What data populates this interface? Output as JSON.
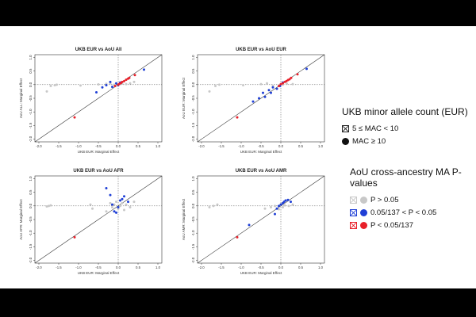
{
  "legend": {
    "mac_title": "UKB minor allele count (EUR)",
    "mac_items": [
      {
        "symbol": "crossed-box",
        "label": "5 ≤ MAC < 10"
      },
      {
        "symbol": "filled-dot",
        "label": "MAC ≥ 10"
      }
    ],
    "pval_title": "AoU cross-ancestry MA P-values",
    "pval_items": [
      {
        "label": "P > 0.05",
        "color": "#c8c8c8"
      },
      {
        "label": "0.05/137 < P < 0.05",
        "color": "#1f3fd6"
      },
      {
        "label": "P < 0.05/137",
        "color": "#e8202a"
      }
    ]
  },
  "colors": {
    "gray": "#c8c8c8",
    "blue": "#1f3fd6",
    "red": "#e8202a"
  },
  "chart_data": [
    {
      "type": "scatter",
      "title": "UKB EUR vs AoU All",
      "xlabel": "UKB EUR: Marginal Effect",
      "ylabel": "AoU ALL: Marginal Effect",
      "xlim": [
        -2.1,
        1.1
      ],
      "ylim": [
        -2.1,
        1.1
      ],
      "xticks": [
        "-2.0",
        "-1.5",
        "-1.0",
        "-0.5",
        "0.0",
        "0.5",
        "1.0"
      ],
      "yticks": [
        "-2.0",
        "-1.5",
        "-1.0",
        "-0.5",
        "0.0",
        "0.5",
        "1.0"
      ],
      "reference": "y = x line; dotted lines at x = 0 and y = 0",
      "series": [
        {
          "category": "gray",
          "points": [
            [
              -1.8,
              -0.25
            ],
            [
              -1.7,
              -0.05
            ],
            [
              -1.6,
              -0.02
            ],
            [
              -1.55,
              0.0
            ],
            [
              -0.95,
              -0.03
            ],
            [
              -0.5,
              0.01
            ],
            [
              -0.3,
              0.03
            ],
            [
              -0.2,
              0.05
            ],
            [
              -0.1,
              0.0
            ],
            [
              0.05,
              0.02
            ],
            [
              0.1,
              0.04
            ],
            [
              0.2,
              0.02
            ],
            [
              0.3,
              0.05
            ],
            [
              0.4,
              0.1
            ]
          ]
        },
        {
          "category": "blue",
          "points": [
            [
              -0.55,
              -0.28
            ],
            [
              -0.4,
              -0.1
            ],
            [
              -0.3,
              -0.02
            ],
            [
              -0.2,
              0.1
            ],
            [
              -0.15,
              -0.08
            ],
            [
              -0.05,
              0.05
            ],
            [
              0.0,
              -0.02
            ],
            [
              0.05,
              0.08
            ],
            [
              0.65,
              0.55
            ]
          ]
        },
        {
          "category": "red",
          "points": [
            [
              -1.1,
              -1.2
            ],
            [
              -0.08,
              -0.05
            ],
            [
              0.0,
              0.0
            ],
            [
              0.03,
              0.03
            ],
            [
              0.07,
              0.06
            ],
            [
              0.1,
              0.1
            ],
            [
              0.15,
              0.13
            ],
            [
              0.2,
              0.18
            ],
            [
              0.25,
              0.22
            ],
            [
              0.28,
              0.25
            ],
            [
              0.42,
              0.35
            ]
          ]
        }
      ]
    },
    {
      "type": "scatter",
      "title": "UKB EUR vs AoU EUR",
      "xlabel": "UKB EUR: Marginal Effect",
      "ylabel": "AoU EUR: Marginal Effect",
      "xlim": [
        -2.1,
        1.1
      ],
      "ylim": [
        -2.1,
        1.1
      ],
      "xticks": [
        "-2.0",
        "-1.5",
        "-1.0",
        "-0.5",
        "0.0",
        "0.5",
        "1.0"
      ],
      "yticks": [
        "-2.0",
        "-1.5",
        "-1.0",
        "-0.5",
        "0.0",
        "0.5",
        "1.0"
      ],
      "reference": "y = x line; dotted lines at x = 0 and y = 0",
      "series": [
        {
          "category": "gray",
          "points": [
            [
              -1.8,
              -0.25
            ],
            [
              -1.65,
              -0.05
            ],
            [
              -1.55,
              0.0
            ],
            [
              -0.95,
              -0.02
            ],
            [
              -0.5,
              0.02
            ],
            [
              -0.35,
              0.05
            ],
            [
              -0.2,
              -0.05
            ],
            [
              0.05,
              0.0
            ],
            [
              0.15,
              0.03
            ],
            [
              0.3,
              0.02
            ]
          ]
        },
        {
          "category": "blue",
          "points": [
            [
              -0.7,
              -0.62
            ],
            [
              -0.55,
              -0.5
            ],
            [
              -0.45,
              -0.3
            ],
            [
              -0.4,
              -0.45
            ],
            [
              -0.3,
              -0.2
            ],
            [
              -0.25,
              -0.3
            ],
            [
              -0.2,
              -0.1
            ],
            [
              -0.1,
              -0.15
            ],
            [
              -0.02,
              -0.05
            ],
            [
              0.05,
              0.08
            ],
            [
              0.65,
              0.58
            ]
          ]
        },
        {
          "category": "red",
          "points": [
            [
              -1.1,
              -1.2
            ],
            [
              -0.05,
              -0.05
            ],
            [
              0.0,
              0.02
            ],
            [
              0.05,
              0.05
            ],
            [
              0.1,
              0.1
            ],
            [
              0.14,
              0.13
            ],
            [
              0.18,
              0.17
            ],
            [
              0.22,
              0.2
            ],
            [
              0.26,
              0.25
            ],
            [
              0.42,
              0.38
            ]
          ]
        }
      ]
    },
    {
      "type": "scatter",
      "title": "UKB EUR vs AoU AFR",
      "xlabel": "UKB EUR: Marginal Effect",
      "ylabel": "AoU AFR: Marginal Effect",
      "xlim": [
        -2.1,
        1.1
      ],
      "ylim": [
        -2.1,
        1.1
      ],
      "xticks": [
        "-2.0",
        "-1.5",
        "-1.0",
        "-0.5",
        "0.0",
        "0.5",
        "1.0"
      ],
      "yticks": [
        "-2.0",
        "-1.5",
        "-1.0",
        "-0.5",
        "0.0",
        "0.5",
        "1.0"
      ],
      "reference": "y = x line; dotted lines at x = 0 and y = 0",
      "series": [
        {
          "category": "gray",
          "points": [
            [
              -1.8,
              -0.02
            ],
            [
              -1.75,
              0.0
            ],
            [
              -1.7,
              0.02
            ],
            [
              -0.7,
              0.05
            ],
            [
              -0.65,
              -0.1
            ],
            [
              -0.3,
              -0.2
            ],
            [
              -0.2,
              0.1
            ],
            [
              -0.15,
              -0.05
            ],
            [
              -0.1,
              0.05
            ],
            [
              -0.05,
              0.15
            ],
            [
              0.0,
              -0.1
            ],
            [
              0.05,
              0.0
            ],
            [
              0.1,
              0.1
            ],
            [
              0.15,
              -0.15
            ],
            [
              0.2,
              0.05
            ],
            [
              0.3,
              -0.05
            ],
            [
              0.4,
              0.15
            ]
          ]
        },
        {
          "category": "blue",
          "points": [
            [
              -0.3,
              0.65
            ],
            [
              -0.2,
              0.4
            ],
            [
              -0.15,
              0.05
            ],
            [
              -0.1,
              -0.2
            ],
            [
              -0.05,
              -0.25
            ],
            [
              0.0,
              -0.05
            ],
            [
              0.05,
              0.2
            ],
            [
              0.1,
              0.25
            ],
            [
              0.15,
              0.35
            ],
            [
              0.25,
              0.15
            ]
          ]
        },
        {
          "category": "red",
          "points": [
            [
              -1.1,
              -1.15
            ]
          ]
        }
      ]
    },
    {
      "type": "scatter",
      "title": "UKB EUR vs AoU AMR",
      "xlabel": "UKB EUR: Marginal Effect",
      "ylabel": "AoU AMR: Marginal Effect",
      "xlim": [
        -2.1,
        1.1
      ],
      "ylim": [
        -2.1,
        1.1
      ],
      "xticks": [
        "-2.0",
        "-1.5",
        "-1.0",
        "-0.5",
        "0.0",
        "0.5",
        "1.0"
      ],
      "yticks": [
        "-2.0",
        "-1.5",
        "-1.0",
        "-0.5",
        "0.0",
        "0.5",
        "1.0"
      ],
      "reference": "y = x line; dotted lines at x = 0 and y = 0",
      "series": [
        {
          "category": "gray",
          "points": [
            [
              -1.8,
              -0.05
            ],
            [
              -1.7,
              0.0
            ],
            [
              -1.6,
              0.05
            ],
            [
              -0.4,
              -0.1
            ],
            [
              -0.25,
              -0.05
            ],
            [
              -0.15,
              0.0
            ],
            [
              -0.05,
              -0.12
            ],
            [
              0.0,
              0.05
            ],
            [
              0.05,
              -0.05
            ],
            [
              0.1,
              0.02
            ],
            [
              0.2,
              0.0
            ],
            [
              0.3,
              0.05
            ]
          ]
        },
        {
          "category": "blue",
          "points": [
            [
              -0.8,
              -0.7
            ],
            [
              -0.15,
              -0.3
            ],
            [
              -0.1,
              -0.1
            ],
            [
              -0.05,
              0.0
            ],
            [
              0.0,
              0.05
            ],
            [
              0.05,
              0.1
            ],
            [
              0.08,
              0.15
            ],
            [
              0.12,
              0.2
            ],
            [
              0.18,
              0.22
            ],
            [
              0.25,
              0.15
            ]
          ]
        },
        {
          "category": "red",
          "points": [
            [
              -1.1,
              -1.15
            ]
          ]
        }
      ]
    }
  ]
}
